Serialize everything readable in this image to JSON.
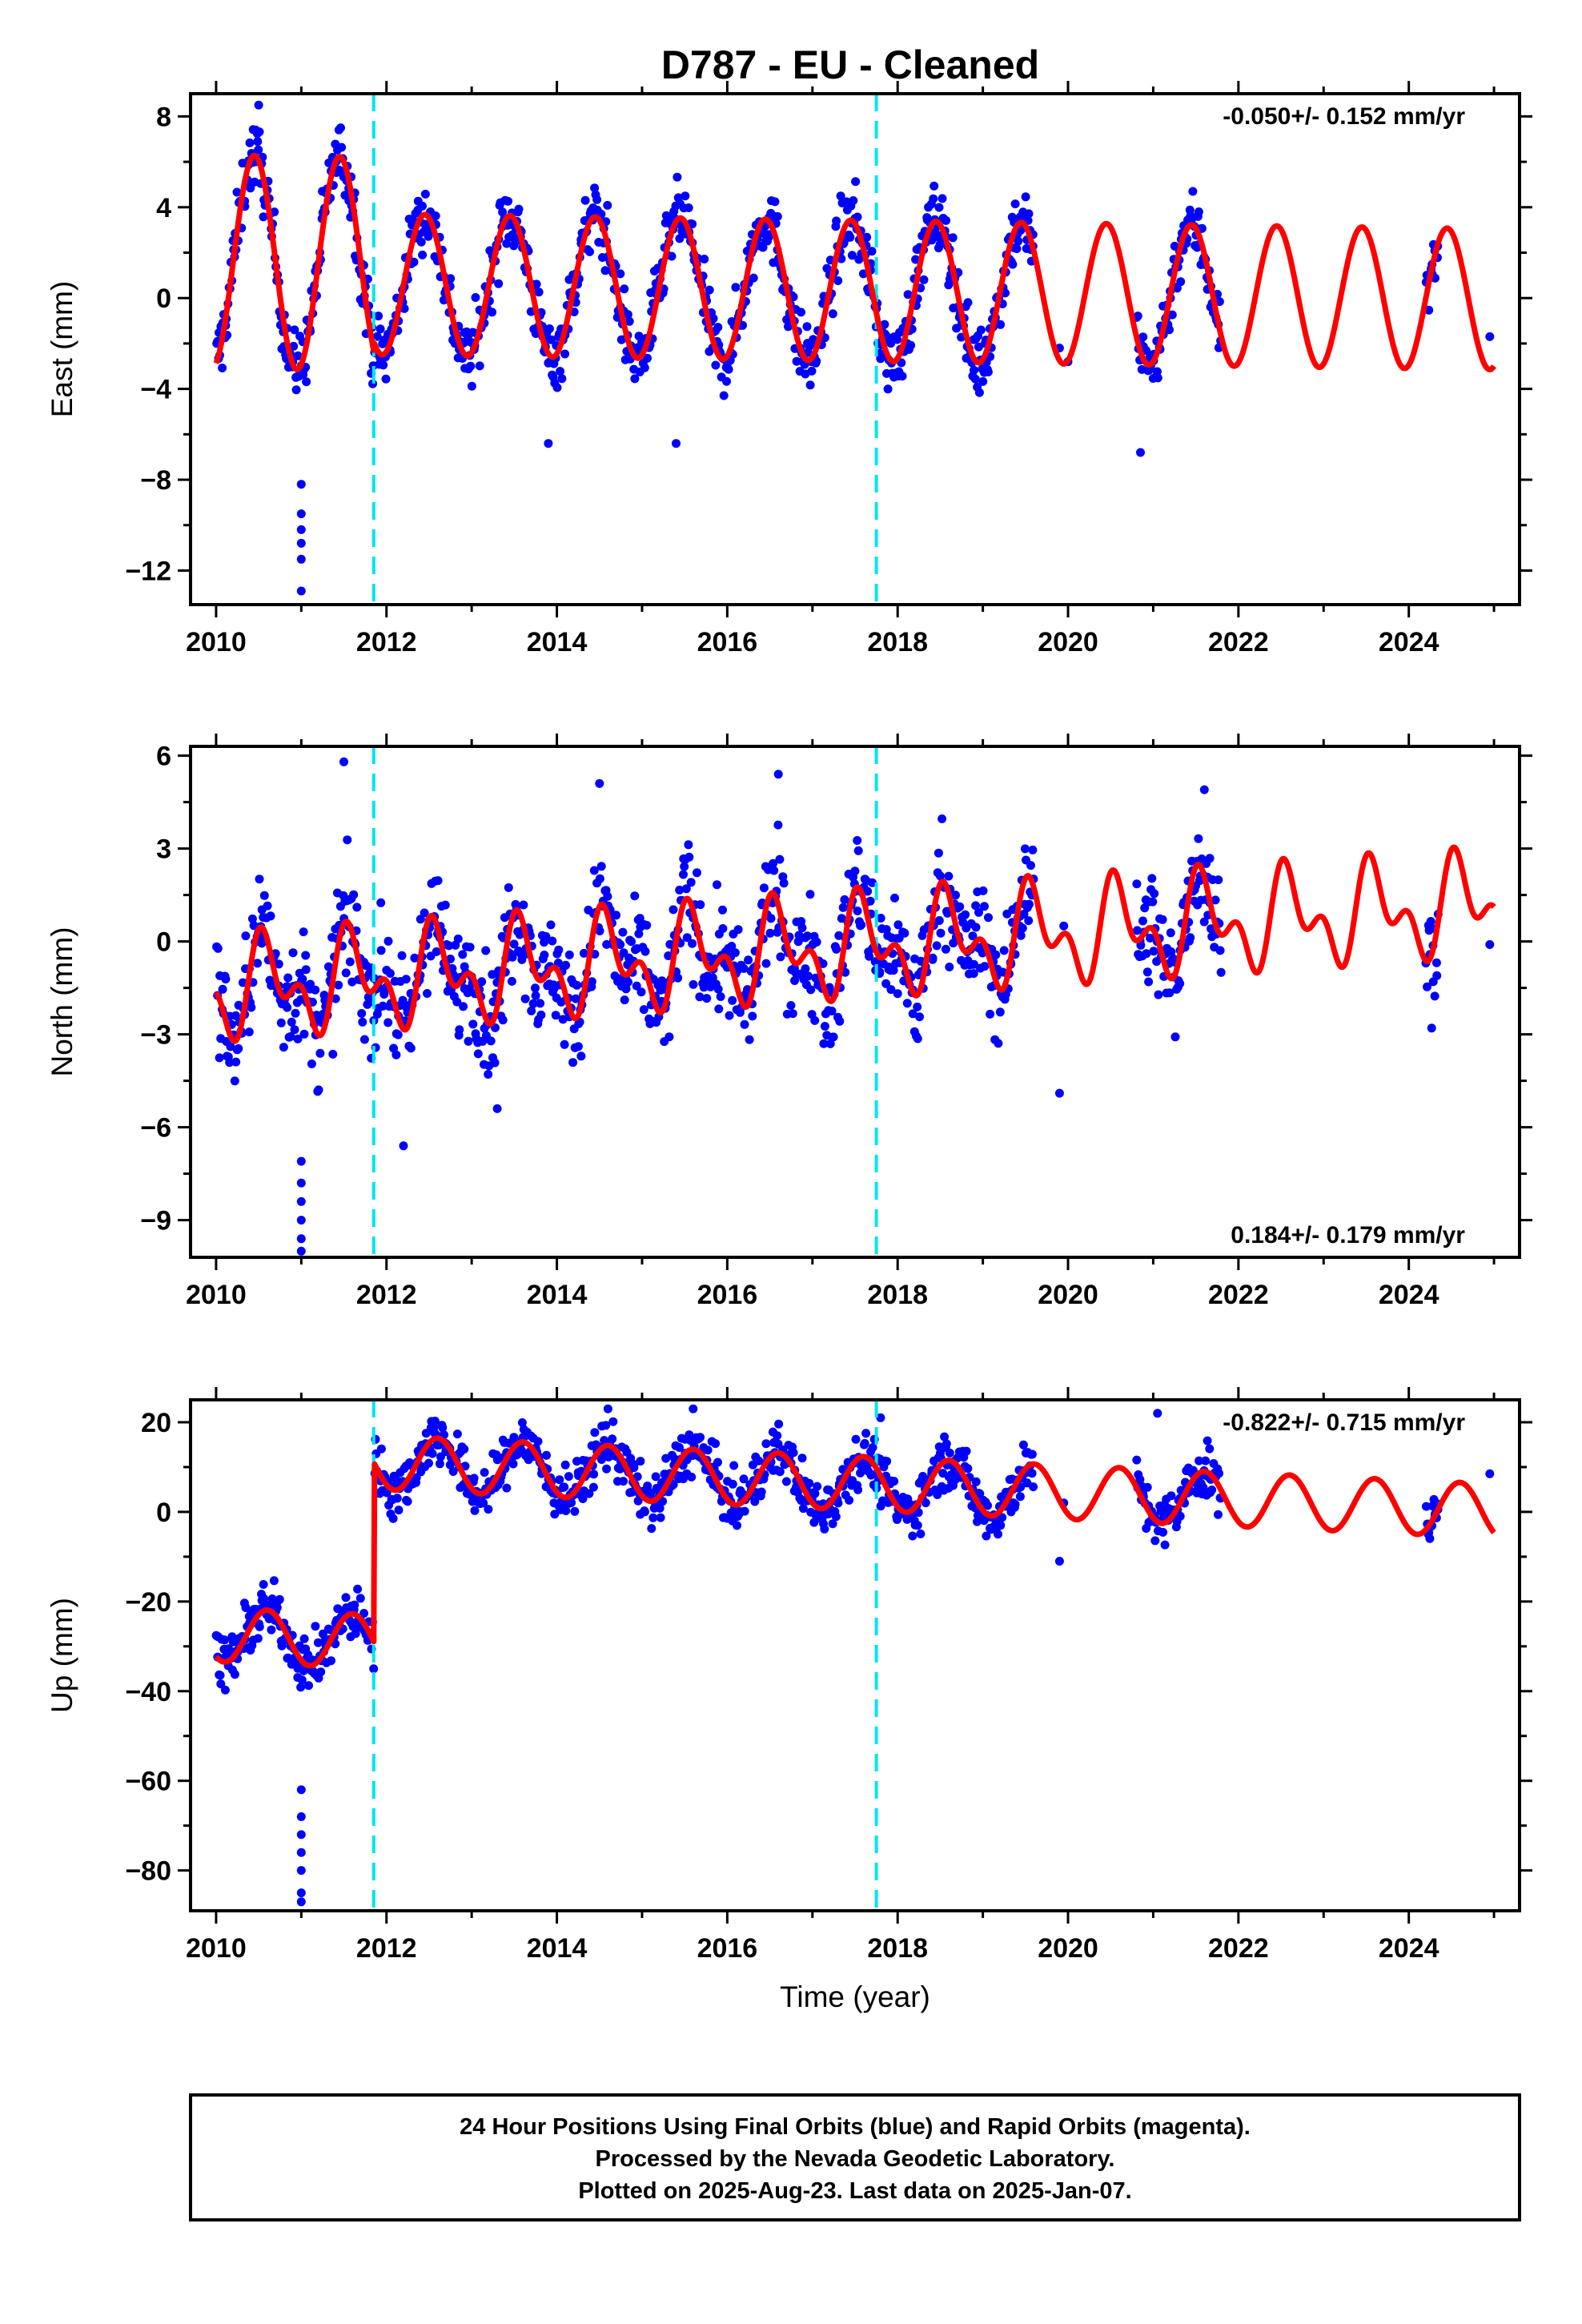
{
  "title": "D787  - EU - Cleaned",
  "footer": {
    "lines": [
      "24 Hour Positions Using Final Orbits (blue) and Rapid Orbits (magenta).",
      "Processed by the Nevada Geodetic Laboratory.",
      "Plotted on 2025-Aug-23. Last data on 2025-Jan-07."
    ]
  },
  "colors": {
    "points": "#0000ff",
    "model": "#ff0000",
    "offsets": "#00e5ee",
    "axes": "#000000"
  },
  "chart_data": [
    {
      "type": "scatter",
      "name": "east",
      "xlabel": "",
      "ylabel": "East (mm)",
      "xlim": [
        2009.7,
        2025.3
      ],
      "ylim": [
        -13.5,
        9.0
      ],
      "xticks": [
        2010,
        2012,
        2014,
        2016,
        2018,
        2020,
        2022,
        2024
      ],
      "yticks": [
        -12,
        -8,
        -4,
        0,
        4,
        8
      ],
      "ytick_labels": [
        "−12",
        "−8",
        "−4",
        "0",
        "4",
        "8"
      ],
      "annotation": "-0.050+/- 0.152 mm/yr",
      "annotation_position": "top-right",
      "rate_mm_per_yr": -0.05,
      "offset_epochs": [
        2011.85,
        2017.75
      ],
      "model": {
        "mean": 0.3,
        "amp1": 3.1,
        "amp2": 0.0,
        "early_amp": 4.7,
        "early_until": 2011.85,
        "early_shift": 0.9,
        "step": 0,
        "peak": 2010.45
      },
      "scatter": {
        "noise": 1.1,
        "per_year": 95
      },
      "data_ranges": [
        [
          2010.0,
          2019.6
        ],
        [
          2020.8,
          2021.8
        ],
        [
          2024.2,
          2024.35
        ]
      ],
      "sparse_points": [
        [
          2019.9,
          -2.2
        ],
        [
          2020.0,
          -2.8
        ],
        [
          2024.95,
          -1.7
        ]
      ],
      "outliers": [
        [
          2011.0,
          -8.2
        ],
        [
          2011.0,
          -9.5
        ],
        [
          2011.0,
          -10.2
        ],
        [
          2011.0,
          -10.8
        ],
        [
          2011.0,
          -11.5
        ],
        [
          2011.0,
          -12.9
        ],
        [
          2010.5,
          8.5
        ],
        [
          2020.85,
          -6.8
        ],
        [
          2015.4,
          -6.4
        ],
        [
          2013.9,
          -6.4
        ]
      ]
    },
    {
      "type": "scatter",
      "name": "north",
      "xlabel": "",
      "ylabel": "North (mm)",
      "xlim": [
        2009.7,
        2025.3
      ],
      "ylim": [
        -10.2,
        6.3
      ],
      "xticks": [
        2010,
        2012,
        2014,
        2016,
        2018,
        2020,
        2022,
        2024
      ],
      "yticks": [
        -9,
        -6,
        -3,
        0,
        3,
        6
      ],
      "ytick_labels": [
        "−9",
        "−6",
        "−3",
        "0",
        "3",
        "6"
      ],
      "annotation": "0.184+/- 0.179 mm/yr",
      "annotation_position": "bottom-right",
      "rate_mm_per_yr": 0.184,
      "offset_epochs": [
        2011.85,
        2017.75
      ],
      "model": {
        "mean": -0.1,
        "amp1": 1.2,
        "amp2": 0.9,
        "early_amp": 0.0,
        "early_until": 2011.85,
        "early_shift": 0.0,
        "step": 0,
        "peak": 2010.6
      },
      "scatter": {
        "noise": 1.3,
        "per_year": 95
      },
      "data_ranges": [
        [
          2010.0,
          2019.6
        ],
        [
          2020.8,
          2021.8
        ],
        [
          2024.2,
          2024.35
        ]
      ],
      "sparse_points": [
        [
          2019.9,
          -4.9
        ],
        [
          2019.95,
          0.5
        ],
        [
          2024.95,
          -0.1
        ]
      ],
      "outliers": [
        [
          2011.0,
          -7.1
        ],
        [
          2011.0,
          -7.8
        ],
        [
          2011.0,
          -8.4
        ],
        [
          2011.0,
          -9.0
        ],
        [
          2011.0,
          -9.6
        ],
        [
          2011.0,
          -10.0
        ],
        [
          2011.5,
          5.8
        ],
        [
          2014.5,
          5.1
        ],
        [
          2016.6,
          5.4
        ],
        [
          2021.6,
          4.9
        ],
        [
          2013.3,
          -5.4
        ],
        [
          2012.2,
          -6.6
        ]
      ]
    },
    {
      "type": "scatter",
      "name": "up",
      "xlabel": "Time (year)",
      "ylabel": "Up (mm)",
      "xlim": [
        2009.7,
        2025.3
      ],
      "ylim": [
        -89,
        25
      ],
      "xticks": [
        2010,
        2012,
        2014,
        2016,
        2018,
        2020,
        2022,
        2024
      ],
      "yticks": [
        -80,
        -60,
        -40,
        -20,
        0,
        20
      ],
      "ytick_labels": [
        "−80",
        "−60",
        "−40",
        "−20",
        "0",
        "20"
      ],
      "annotation": "-0.822+/- 0.715 mm/yr",
      "annotation_position": "top-right",
      "rate_mm_per_yr": -0.822,
      "offset_epochs": [
        2011.85,
        2017.75
      ],
      "model": {
        "mean": 6.0,
        "amp1": 6.0,
        "amp2": 0.0,
        "early_amp": 6.0,
        "early_until": 2011.85,
        "early_shift": 0.0,
        "step": -40,
        "peak": 2010.6
      },
      "scatter": {
        "noise": 4.2,
        "per_year": 95
      },
      "data_ranges": [
        [
          2010.0,
          2019.6
        ],
        [
          2020.8,
          2021.8
        ],
        [
          2024.2,
          2024.35
        ]
      ],
      "sparse_points": [
        [
          2019.9,
          -11
        ],
        [
          2019.95,
          2
        ],
        [
          2024.95,
          8.5
        ]
      ],
      "outliers": [
        [
          2011.0,
          -62
        ],
        [
          2011.0,
          -68
        ],
        [
          2011.0,
          -72
        ],
        [
          2011.0,
          -76
        ],
        [
          2011.0,
          -80
        ],
        [
          2011.0,
          -85
        ],
        [
          2011.0,
          -87
        ],
        [
          2021.05,
          22
        ],
        [
          2017.8,
          21
        ],
        [
          2014.6,
          23
        ],
        [
          2015.6,
          23
        ]
      ]
    }
  ]
}
